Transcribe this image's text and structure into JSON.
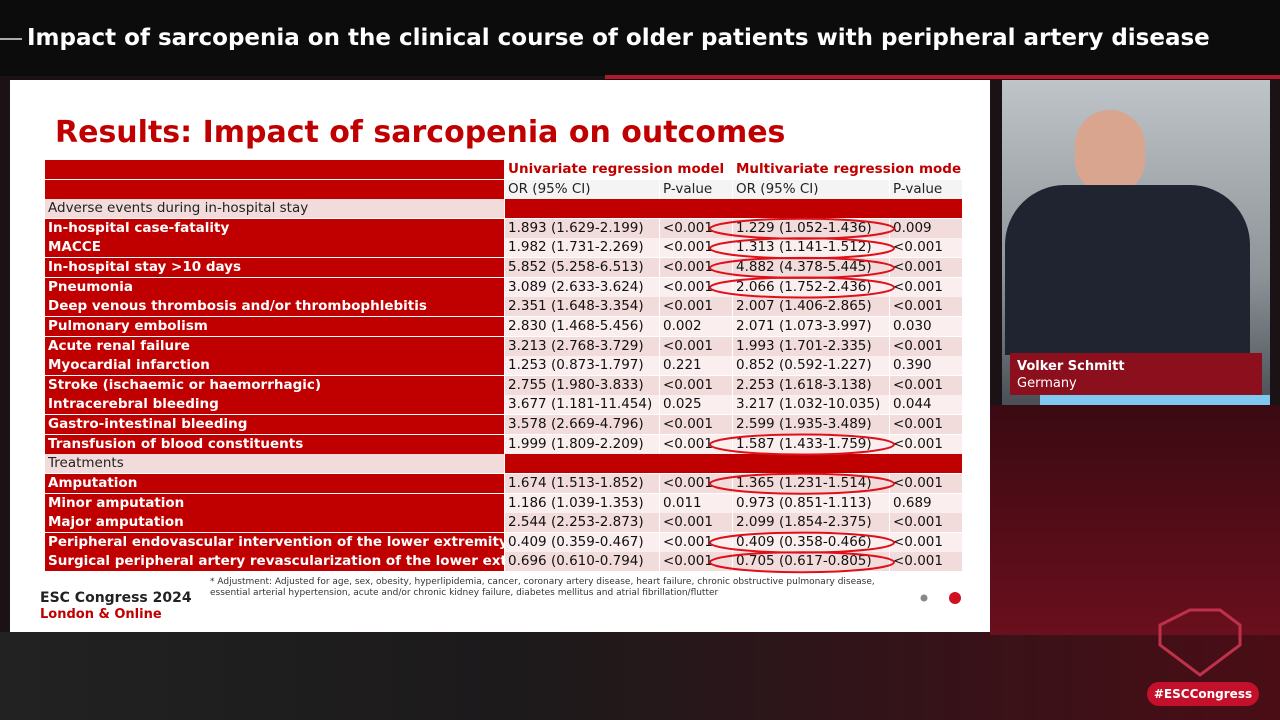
{
  "header": {
    "title": "Impact of sarcopenia on the clinical course of older patients with peripheral artery disease"
  },
  "slide": {
    "title": "Results: Impact of sarcopenia on outcomes",
    "table": {
      "group_headers": [
        "Univariate regression model",
        "Multivariate regression model*"
      ],
      "column_headers": [
        "OR (95% CI)",
        "P-value",
        "OR (95% CI)",
        "P-value"
      ],
      "sections": [
        {
          "title": "Adverse events during in-hospital stay",
          "rows": [
            [
              "In-hospital case-fatality",
              "1.893 (1.629-2.199)",
              "<0.001",
              "1.229 (1.052-1.436)",
              "0.009"
            ],
            [
              "MACCE",
              "1.982 (1.731-2.269)",
              "<0.001",
              "1.313 (1.141-1.512)",
              "<0.001"
            ],
            [
              "In-hospital stay >10 days",
              "5.852 (5.258-6.513)",
              "<0.001",
              "4.882 (4.378-5.445)",
              "<0.001"
            ],
            [
              "Pneumonia",
              "3.089 (2.633-3.624)",
              "<0.001",
              "2.066 (1.752-2.436)",
              "<0.001"
            ],
            [
              "Deep venous thrombosis and/or thrombophlebitis",
              "2.351 (1.648-3.354)",
              "<0.001",
              "2.007 (1.406-2.865)",
              "<0.001"
            ],
            [
              "Pulmonary embolism",
              "2.830 (1.468-5.456)",
              "0.002",
              "2.071 (1.073-3.997)",
              "0.030"
            ],
            [
              "Acute renal failure",
              "3.213 (2.768-3.729)",
              "<0.001",
              "1.993 (1.701-2.335)",
              "<0.001"
            ],
            [
              "Myocardial infarction",
              "1.253 (0.873-1.797)",
              "0.221",
              "0.852 (0.592-1.227)",
              "0.390"
            ],
            [
              "Stroke (ischaemic or haemorrhagic)",
              "2.755 (1.980-3.833)",
              "<0.001",
              "2.253 (1.618-3.138)",
              "<0.001"
            ],
            [
              "Intracerebral bleeding",
              "3.677 (1.181-11.454)",
              "0.025",
              "3.217 (1.032-10.035)",
              "0.044"
            ],
            [
              "Gastro-intestinal bleeding",
              "3.578 (2.669-4.796)",
              "<0.001",
              "2.599 (1.935-3.489)",
              "<0.001"
            ],
            [
              "Transfusion of blood constituents",
              "1.999 (1.809-2.209)",
              "<0.001",
              "1.587 (1.433-1.759)",
              "<0.001"
            ]
          ]
        },
        {
          "title": "Treatments",
          "rows": [
            [
              "Amputation",
              "1.674 (1.513-1.852)",
              "<0.001",
              "1.365 (1.231-1.514)",
              "<0.001"
            ],
            [
              "Minor amputation",
              "1.186 (1.039-1.353)",
              "0.011",
              "0.973 (0.851-1.113)",
              "0.689"
            ],
            [
              "Major amputation",
              "2.544 (2.253-2.873)",
              "<0.001",
              "2.099 (1.854-2.375)",
              "<0.001"
            ],
            [
              "Peripheral endovascular intervention of the lower extremity",
              "0.409 (0.359-0.467)",
              "<0.001",
              "0.409 (0.358-0.466)",
              "<0.001"
            ],
            [
              "Surgical peripheral artery revascularization of the lower extremity",
              "0.696 (0.610-0.794)",
              "<0.001",
              "0.705 (0.617-0.805)",
              "<0.001"
            ]
          ]
        }
      ]
    },
    "footnote": "* Adjustment: Adjusted for age, sex, obesity, hyperlipidemia, cancer, coronary artery disease, heart failure, chronic obstructive pulmonary disease, essential arterial hypertension, acute and/or chronic kidney failure, diabetes mellitus and atrial fibrillation/flutter",
    "branding": {
      "event": "ESC Congress 2024",
      "location": "London & Online"
    }
  },
  "speaker": {
    "name": "Volker Schmitt",
    "country": "Germany"
  },
  "hashtag": "#ESCCongress"
}
